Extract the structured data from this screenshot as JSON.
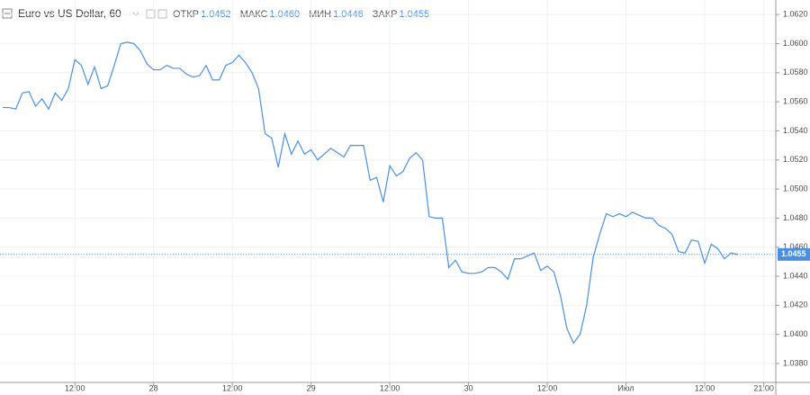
{
  "chart_data": {
    "type": "line",
    "title": "Euro vs US Dollar, 60",
    "ohlc": [
      {
        "label": "ОТКР",
        "value": "1.0452"
      },
      {
        "label": "МАКС",
        "value": "1.0460"
      },
      {
        "label": "МИН",
        "value": "1.0446"
      },
      {
        "label": "ЗАКР",
        "value": "1.0455"
      }
    ],
    "categories": [
      null,
      null,
      null,
      null,
      null,
      null,
      null,
      null,
      null,
      null,
      null,
      "12:00",
      null,
      null,
      null,
      null,
      null,
      null,
      null,
      null,
      null,
      null,
      null,
      "28",
      null,
      null,
      null,
      null,
      null,
      null,
      null,
      null,
      null,
      null,
      null,
      "12:00",
      null,
      null,
      null,
      null,
      null,
      null,
      null,
      null,
      null,
      null,
      null,
      "29",
      null,
      null,
      null,
      null,
      null,
      null,
      null,
      null,
      null,
      null,
      null,
      "12:00",
      null,
      null,
      null,
      null,
      null,
      null,
      null,
      null,
      null,
      null,
      null,
      "30",
      null,
      null,
      null,
      null,
      null,
      null,
      null,
      null,
      null,
      null,
      null,
      "12:00",
      null,
      null,
      null,
      null,
      null,
      null,
      null,
      null,
      null,
      null,
      null,
      "Июл",
      null,
      null,
      null,
      null,
      null,
      null,
      null,
      null,
      null,
      null,
      null,
      "12:00",
      null,
      null,
      null,
      null,
      null,
      null,
      null,
      null,
      "21:00"
    ],
    "series": [
      {
        "color": "#4a90e2",
        "values": [
          1.0556,
          1.0556,
          1.0555,
          1.0566,
          1.0567,
          1.0557,
          1.0562,
          1.0555,
          1.0566,
          1.0561,
          1.0569,
          1.0589,
          1.0585,
          1.0572,
          1.0584,
          1.0569,
          1.0571,
          1.0585,
          1.06,
          1.0601,
          1.06,
          1.0595,
          1.0586,
          1.0582,
          1.0582,
          1.0585,
          1.0583,
          1.0583,
          1.0579,
          1.0577,
          1.0578,
          1.0585,
          1.0575,
          1.0575,
          1.0585,
          1.0587,
          1.0592,
          1.0587,
          1.058,
          1.0569,
          1.0538,
          1.0535,
          1.0515,
          1.0538,
          1.0524,
          1.0533,
          1.0524,
          1.0527,
          1.052,
          1.0524,
          1.0528,
          1.0525,
          1.0522,
          1.053,
          1.053,
          1.053,
          1.0506,
          1.0508,
          1.0491,
          1.0516,
          1.0509,
          1.0512,
          1.0521,
          1.0525,
          1.052,
          1.0481,
          1.048,
          1.048,
          1.0446,
          1.0451,
          1.0443,
          1.0442,
          1.0442,
          1.0443,
          1.0446,
          1.0446,
          1.0443,
          1.0438,
          1.0452,
          1.0452,
          1.0454,
          1.0456,
          1.0444,
          1.0447,
          1.0443,
          1.0427,
          1.0404,
          1.0394,
          1.04,
          1.042,
          1.0453,
          1.0469,
          1.0483,
          1.0481,
          1.0483,
          1.0481,
          1.0484,
          1.0482,
          1.048,
          1.048,
          1.0475,
          1.0473,
          1.0469,
          1.0457,
          1.0456,
          1.0465,
          1.0464,
          1.0449,
          1.0462,
          1.0459,
          1.0452,
          1.0456,
          1.0455,
          null,
          null,
          null,
          null
        ]
      }
    ],
    "ylim": [
      1.0367,
      1.063
    ],
    "yticks": [
      {
        "value": 1.038,
        "label": "1.0380"
      },
      {
        "value": 1.04,
        "label": "1.0400"
      },
      {
        "value": 1.042,
        "label": "1.0420"
      },
      {
        "value": 1.044,
        "label": "1.0440"
      },
      {
        "value": 1.046,
        "label": "1.0460"
      },
      {
        "value": 1.048,
        "label": "1.0480"
      },
      {
        "value": 1.05,
        "label": "1.0500"
      },
      {
        "value": 1.052,
        "label": "1.0520"
      },
      {
        "value": 1.054,
        "label": "1.0540"
      },
      {
        "value": 1.056,
        "label": "1.0560"
      },
      {
        "value": 1.058,
        "label": "1.0580"
      },
      {
        "value": 1.06,
        "label": "1.0600"
      },
      {
        "value": 1.062,
        "label": "1.0620"
      }
    ],
    "last_price": 1.0455,
    "grid": true
  }
}
